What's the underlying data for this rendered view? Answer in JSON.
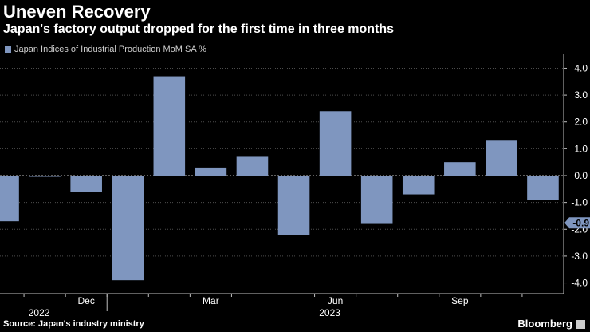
{
  "header": {
    "title": "Uneven Recovery",
    "subtitle": "Japan's factory output dropped for the first time in three months"
  },
  "legend": {
    "label": "Japan Indices of Industrial Production MoM SA %",
    "color": "#7f96bf"
  },
  "footer": {
    "source": "Source: Japan's industry ministry",
    "brand": "Bloomberg"
  },
  "chart_data": {
    "type": "bar",
    "categories": [
      "Oct 2022",
      "Nov 2022",
      "Dec 2022",
      "Jan 2023",
      "Feb 2023",
      "Mar 2023",
      "Apr 2023",
      "May 2023",
      "Jun 2023",
      "Jul 2023",
      "Aug 2023",
      "Sep 2023",
      "Oct 2023",
      "Nov 2023"
    ],
    "values": [
      -1.7,
      0.0,
      -0.6,
      -3.9,
      3.7,
      0.3,
      0.7,
      -2.2,
      2.4,
      -1.8,
      -0.7,
      0.5,
      1.3,
      -0.9
    ],
    "x_tick_labels": [
      {
        "label": "Dec",
        "index": 2
      },
      {
        "label": "Mar",
        "index": 5
      },
      {
        "label": "Jun",
        "index": 8
      },
      {
        "label": "Sep",
        "index": 11
      }
    ],
    "year_labels": [
      {
        "label": "2022",
        "index": 1
      },
      {
        "label": "2023",
        "index": 8
      }
    ],
    "y_ticks": [
      4.0,
      3.0,
      2.0,
      1.0,
      0.0,
      -1.0,
      -2.0,
      -3.0,
      -4.0
    ],
    "y_tick_labels": [
      "4.0",
      "3.0",
      "2.0",
      "1.0",
      "0.0",
      "-1.0",
      "-2.0",
      "-3.0",
      "-4.0"
    ],
    "ylim": [
      -4.4,
      4.4
    ],
    "last_value_label": "-0.9",
    "bar_color": "#7f96bf",
    "grid": true,
    "xlabel": "",
    "ylabel": "",
    "y_axis_side": "right",
    "legend_position": "top-left"
  }
}
